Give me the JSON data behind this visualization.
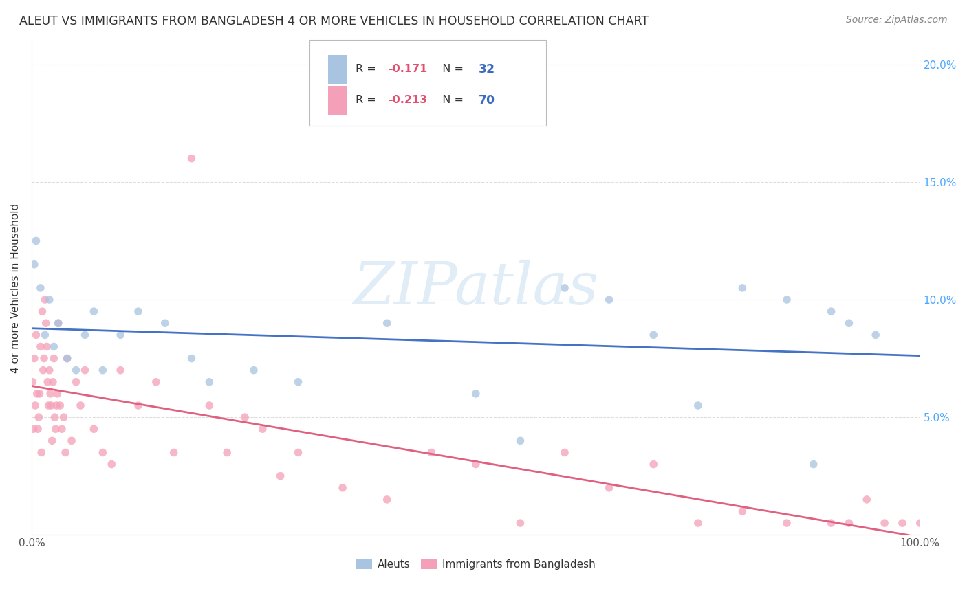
{
  "title": "ALEUT VS IMMIGRANTS FROM BANGLADESH 4 OR MORE VEHICLES IN HOUSEHOLD CORRELATION CHART",
  "source": "Source: ZipAtlas.com",
  "ylabel": "4 or more Vehicles in Household",
  "xlim": [
    0,
    100
  ],
  "ylim": [
    0,
    21
  ],
  "background_color": "#ffffff",
  "grid_color": "#dddddd",
  "watermark_text": "ZIPatlas",
  "aleuts_dot_color": "#a8c4e0",
  "bangladesh_dot_color": "#f4a0b8",
  "aleuts_line_color": "#4472c4",
  "bangladesh_line_color": "#e06080",
  "dot_size": 70,
  "dot_alpha": 0.75,
  "line_width": 2.0,
  "aleuts_R": "-0.171",
  "aleuts_N": "32",
  "bangladesh_R": "-0.213",
  "bangladesh_N": "70",
  "R_color": "#e05070",
  "N_color": "#3a6bbf",
  "aleuts_x": [
    0.3,
    0.5,
    1.0,
    1.5,
    2.0,
    2.5,
    3.0,
    4.0,
    5.0,
    6.0,
    7.0,
    8.0,
    10.0,
    12.0,
    15.0,
    18.0,
    20.0,
    25.0,
    30.0,
    40.0,
    50.0,
    55.0,
    60.0,
    65.0,
    70.0,
    75.0,
    80.0,
    85.0,
    88.0,
    90.0,
    92.0,
    95.0
  ],
  "aleuts_y": [
    11.5,
    12.5,
    10.5,
    8.5,
    10.0,
    8.0,
    9.0,
    7.5,
    7.0,
    8.5,
    9.5,
    7.0,
    8.5,
    9.5,
    9.0,
    7.5,
    6.5,
    7.0,
    6.5,
    9.0,
    6.0,
    4.0,
    10.5,
    10.0,
    8.5,
    5.5,
    10.5,
    10.0,
    3.0,
    9.5,
    9.0,
    8.5
  ],
  "bangladesh_x": [
    0.1,
    0.2,
    0.3,
    0.4,
    0.5,
    0.6,
    0.7,
    0.8,
    0.9,
    1.0,
    1.1,
    1.2,
    1.3,
    1.4,
    1.5,
    1.6,
    1.7,
    1.8,
    1.9,
    2.0,
    2.1,
    2.2,
    2.3,
    2.4,
    2.5,
    2.6,
    2.7,
    2.8,
    2.9,
    3.0,
    3.2,
    3.4,
    3.6,
    3.8,
    4.0,
    4.5,
    5.0,
    5.5,
    6.0,
    7.0,
    8.0,
    9.0,
    10.0,
    12.0,
    14.0,
    16.0,
    18.0,
    20.0,
    22.0,
    24.0,
    26.0,
    28.0,
    30.0,
    35.0,
    40.0,
    45.0,
    50.0,
    55.0,
    60.0,
    65.0,
    70.0,
    75.0,
    80.0,
    85.0,
    90.0,
    92.0,
    94.0,
    96.0,
    98.0,
    100.0
  ],
  "bangladesh_y": [
    6.5,
    4.5,
    7.5,
    5.5,
    8.5,
    6.0,
    4.5,
    5.0,
    6.0,
    8.0,
    3.5,
    9.5,
    7.0,
    7.5,
    10.0,
    9.0,
    8.0,
    6.5,
    5.5,
    7.0,
    6.0,
    5.5,
    4.0,
    6.5,
    7.5,
    5.0,
    4.5,
    5.5,
    6.0,
    9.0,
    5.5,
    4.5,
    5.0,
    3.5,
    7.5,
    4.0,
    6.5,
    5.5,
    7.0,
    4.5,
    3.5,
    3.0,
    7.0,
    5.5,
    6.5,
    3.5,
    16.0,
    5.5,
    3.5,
    5.0,
    4.5,
    2.5,
    3.5,
    2.0,
    1.5,
    3.5,
    3.0,
    0.5,
    3.5,
    2.0,
    3.0,
    0.5,
    1.0,
    0.5,
    0.5,
    0.5,
    1.5,
    0.5,
    0.5,
    0.5
  ]
}
